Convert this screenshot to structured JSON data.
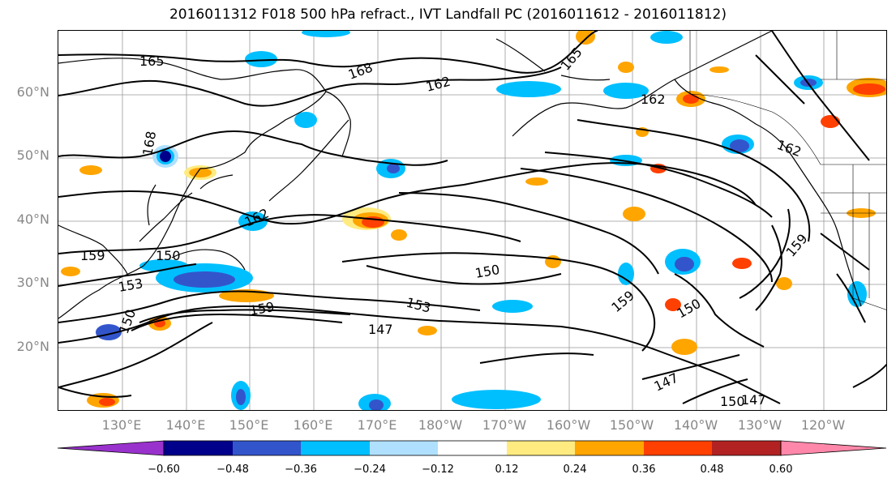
{
  "title": "2016011312 F018 500 hPa refract., IVT Landfall PC (2016011612 - 2016011812)",
  "lat_labels": [
    "60°N",
    "50°N",
    "40°N",
    "30°N",
    "20°N"
  ],
  "lon_labels": [
    "130°E",
    "140°E",
    "150°E",
    "160°E",
    "170°E",
    "180°W",
    "170°W",
    "160°W",
    "150°W",
    "140°W",
    "130°W",
    "120°W"
  ],
  "contour_labels": [
    "165",
    "168",
    "162",
    "165",
    "162",
    "162",
    "168",
    "162",
    "159",
    "150",
    "159",
    "150",
    "153",
    "159",
    "153",
    "150",
    "147",
    "159",
    "150",
    "147",
    "150",
    "147"
  ],
  "colorbar": {
    "ticks": [
      "−0.60",
      "−0.48",
      "−0.36",
      "−0.24",
      "−0.12",
      "0.12",
      "0.24",
      "0.36",
      "0.48",
      "0.60"
    ],
    "colors": [
      "#9932cc",
      "#00008b",
      "#3355cc",
      "#00bfff",
      "#b0e0ff",
      "#ffffff",
      "#ffeb80",
      "#ffa500",
      "#ff4000",
      "#b22222",
      "#ff88aa"
    ]
  }
}
